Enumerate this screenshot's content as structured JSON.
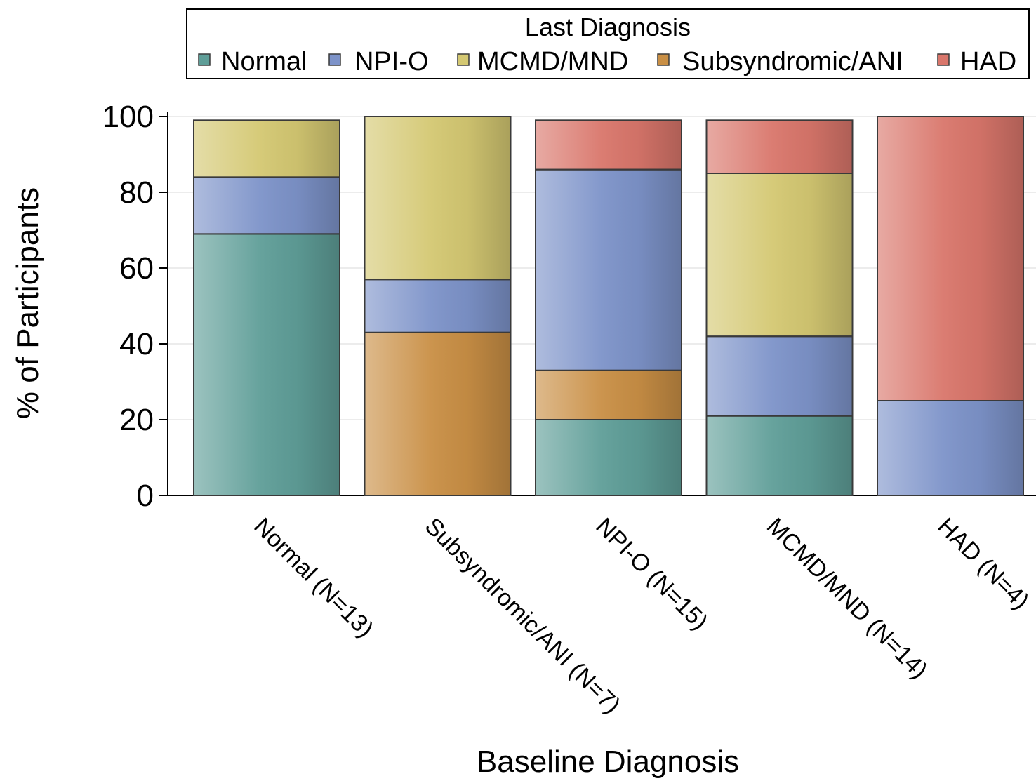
{
  "chart_data": {
    "type": "bar",
    "stacked": true,
    "categories": [
      "Normal (N=13)",
      "Subsyndromic/ANI (N=7)",
      "NPI-O (N=15)",
      "MCMD/MND (N=14)",
      "HAD (N=4)"
    ],
    "series": [
      {
        "name": "Normal",
        "color": "#5F9E98",
        "values": [
          69,
          0,
          20,
          21,
          0
        ]
      },
      {
        "name": "NPI-O",
        "color": "#7D93C9",
        "values": [
          15,
          14,
          53,
          21,
          25
        ]
      },
      {
        "name": "MCMD/MND",
        "color": "#D4C872",
        "values": [
          15,
          43,
          0,
          43,
          0
        ]
      },
      {
        "name": "Subsyndromic/ANI",
        "color": "#C98F45",
        "values": [
          0,
          43,
          13,
          0,
          0
        ]
      },
      {
        "name": "HAD",
        "color": "#D9766B",
        "values": [
          0,
          0,
          13,
          14,
          75
        ]
      }
    ],
    "stack_order": [
      "Normal",
      "Subsyndromic/ANI",
      "NPI-O",
      "MCMD/MND",
      "HAD"
    ],
    "legend": {
      "title": "Last Diagnosis",
      "placement": "top"
    },
    "xlabel": "Baseline Diagnosis",
    "ylabel": "% of Participants",
    "ylim": [
      0,
      100
    ],
    "yticks": [
      0,
      20,
      40,
      60,
      80,
      100
    ],
    "grid": true
  }
}
